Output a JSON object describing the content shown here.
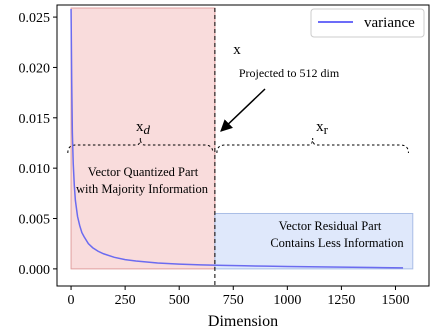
{
  "chart_data": {
    "type": "line",
    "title": "",
    "xlabel": "Dimension",
    "ylabel": "",
    "xlim": [
      -65,
      1655
    ],
    "ylim": [
      -0.0017,
      0.0262
    ],
    "x_ticks": [
      0,
      250,
      500,
      750,
      1000,
      1250,
      1500
    ],
    "x_tick_labels": [
      "0",
      "250",
      "500",
      "750",
      "1000",
      "1250",
      "1500"
    ],
    "y_ticks": [
      0.0,
      0.005,
      0.01,
      0.015,
      0.02,
      0.025
    ],
    "y_tick_labels": [
      "0.000",
      "0.005",
      "0.010",
      "0.015",
      "0.020",
      "0.025"
    ],
    "grid": false,
    "legend_position": "top-right",
    "series": [
      {
        "name": "variance",
        "color": "#6b6bf0",
        "x": [
          0,
          3,
          6,
          10,
          15,
          20,
          30,
          40,
          50,
          60,
          80,
          100,
          125,
          150,
          200,
          250,
          300,
          400,
          500,
          600,
          700,
          800,
          900,
          1000,
          1100,
          1200,
          1300,
          1400,
          1535
        ],
        "y": [
          0.0258,
          0.0185,
          0.0135,
          0.0105,
          0.0083,
          0.0068,
          0.0052,
          0.0043,
          0.0036,
          0.0032,
          0.0025,
          0.0021,
          0.00175,
          0.0015,
          0.00115,
          0.00092,
          0.00078,
          0.00058,
          0.00047,
          0.0004,
          0.00035,
          0.00031,
          0.00027,
          0.00024,
          0.00021,
          0.00019,
          0.00016,
          0.00014,
          0.0001
        ]
      }
    ],
    "regions": [
      {
        "label_line1": "Vector Quantized Part",
        "label_line2": "with Majority Information",
        "x_start": 0,
        "x_end": 665,
        "y_start": 0,
        "y_end": 0.0259,
        "fill": "#f9dcdc",
        "edge": "#e0a0a0"
      },
      {
        "label_line1": "Vector Residual Part",
        "label_line2": "Contains Less Information",
        "x_start": 665,
        "x_end": 1580,
        "y_start": 0,
        "y_end": 0.0055,
        "fill": "#dfe8fb",
        "edge": "#a9bde6"
      }
    ],
    "split_x": 665,
    "annotations": {
      "x_label": "x",
      "projected_label": "Projected to 512 dim",
      "xd_label": "x",
      "xd_sub": "d",
      "xr_label": "x",
      "xr_sub": "r"
    }
  }
}
